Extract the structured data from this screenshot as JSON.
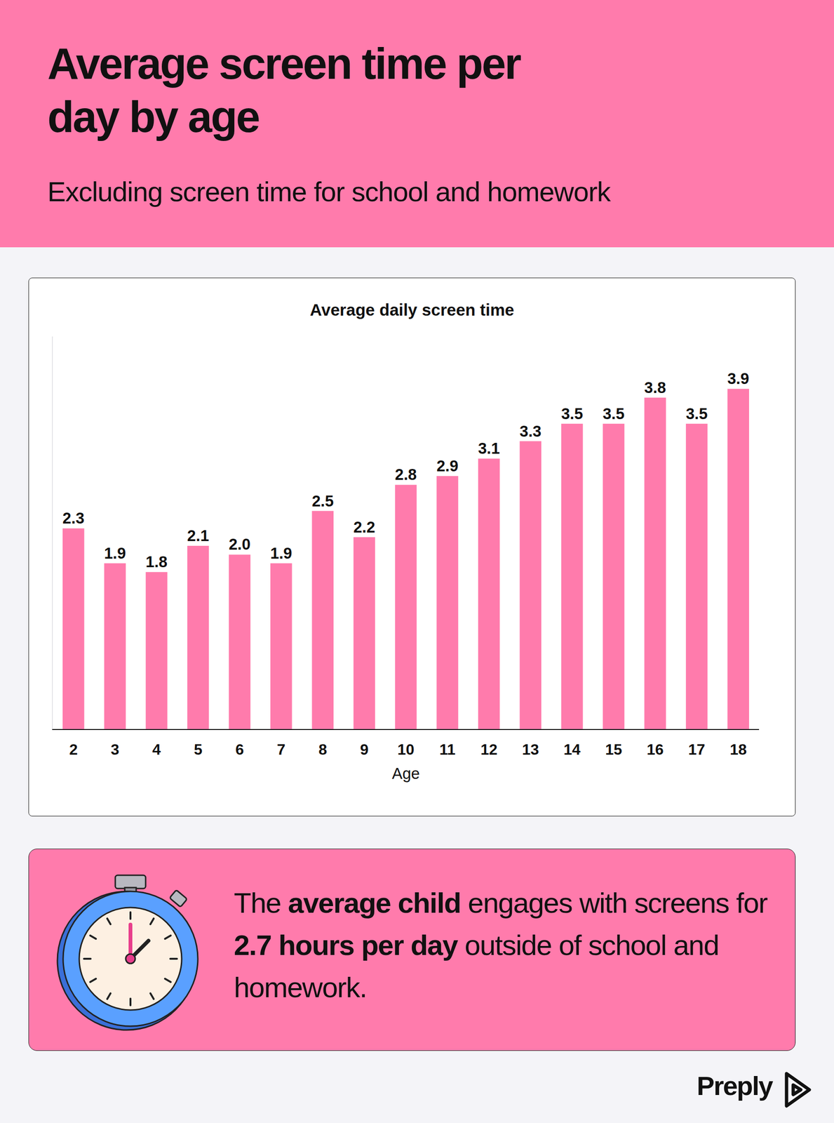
{
  "header": {
    "title": "Average screen time per day by age",
    "subtitle": "Excluding screen time for school and homework"
  },
  "chart_data": {
    "type": "bar",
    "title": "Average daily screen time",
    "x_label": "Age",
    "categories": [
      "2",
      "3",
      "4",
      "5",
      "6",
      "7",
      "8",
      "9",
      "10",
      "11",
      "12",
      "13",
      "14",
      "15",
      "16",
      "17",
      "18"
    ],
    "values": [
      2.3,
      1.9,
      1.8,
      2.1,
      2.0,
      1.9,
      2.5,
      2.2,
      2.8,
      2.9,
      3.1,
      3.3,
      3.5,
      3.5,
      3.8,
      3.5,
      3.9
    ],
    "value_labels": [
      "2.3",
      "1.9",
      "1.8",
      "2.1",
      "2.0",
      "1.9",
      "2.5",
      "2.2",
      "2.8",
      "2.9",
      "3.1",
      "3.3",
      "3.5",
      "3.5",
      "3.8",
      "3.5",
      "3.9"
    ],
    "color": "#ff7bac",
    "ylim": [
      0,
      4.5
    ],
    "yticks": [],
    "grid": false,
    "data_labels": true,
    "tick_labels": "x"
  },
  "callout": {
    "segments": [
      {
        "text": "The ",
        "bold": false
      },
      {
        "text": "average child",
        "bold": true
      },
      {
        "text": " engages with screens for ",
        "bold": false
      },
      {
        "text": "2.7 hours per day",
        "bold": true
      },
      {
        "text": " outside of school and homework.",
        "bold": false
      }
    ]
  },
  "brand": "Preply"
}
